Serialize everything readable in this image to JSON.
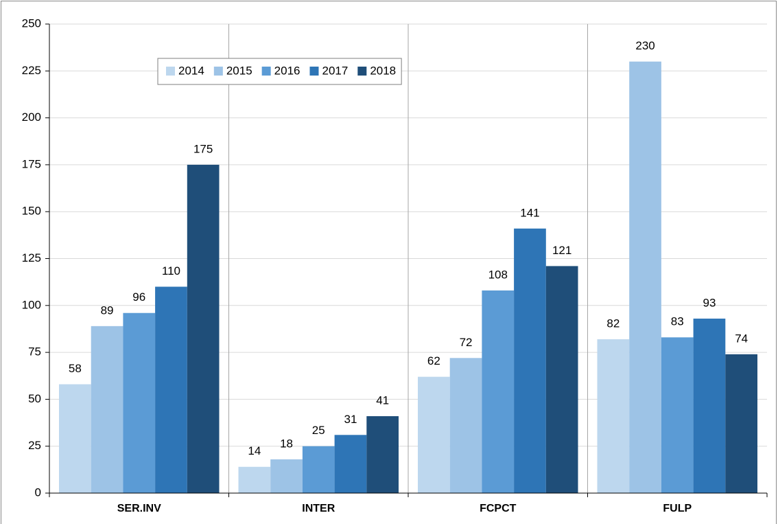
{
  "chart_data": {
    "type": "bar",
    "categories": [
      "SER.INV",
      "INTER",
      "FCPCT",
      "FULP"
    ],
    "series": [
      {
        "name": "2014",
        "color": "#bdd7ee",
        "values": [
          58,
          14,
          62,
          82
        ]
      },
      {
        "name": "2015",
        "color": "#9dc3e6",
        "values": [
          89,
          18,
          72,
          230
        ]
      },
      {
        "name": "2016",
        "color": "#5b9bd5",
        "values": [
          96,
          25,
          108,
          83
        ]
      },
      {
        "name": "2017",
        "color": "#2e75b6",
        "values": [
          110,
          31,
          141,
          93
        ]
      },
      {
        "name": "2018",
        "color": "#1f4e79",
        "values": [
          175,
          41,
          121,
          74
        ]
      }
    ],
    "ylim": [
      0,
      250
    ],
    "yticks": [
      0,
      25,
      50,
      75,
      100,
      125,
      150,
      175,
      200,
      225,
      250
    ],
    "grid": true,
    "legend": "top-left"
  }
}
